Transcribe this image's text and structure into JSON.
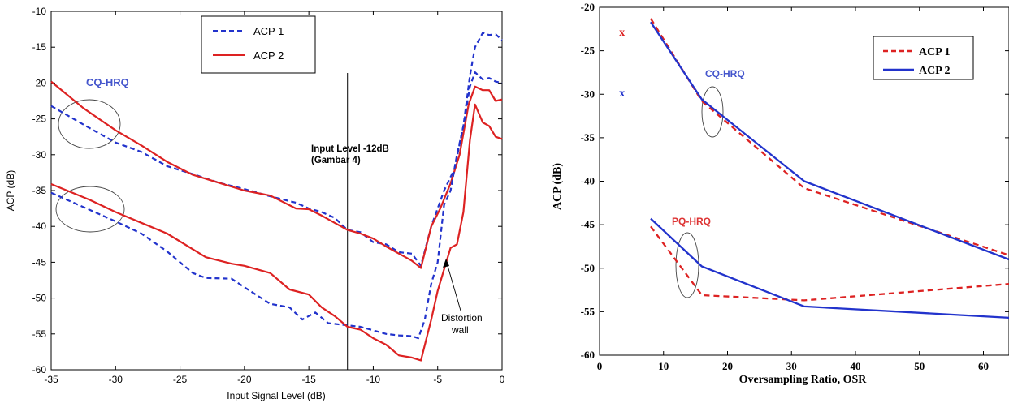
{
  "chart_data": [
    {
      "type": "line",
      "xlabel": "Input Signal Level (dB)",
      "ylabel": "ACP (dB)",
      "xlim": [
        -35,
        0
      ],
      "ylim": [
        -60,
        -10
      ],
      "x_ticks": [
        -35,
        -30,
        -25,
        -20,
        -15,
        -10,
        -5,
        0
      ],
      "y_ticks": [
        -60,
        -55,
        -50,
        -45,
        -40,
        -35,
        -30,
        -25,
        -20,
        -15,
        -10
      ],
      "grid": false,
      "legend_position": "top-center",
      "legend": [
        {
          "name": "ACP 1",
          "color": "#2233cc",
          "style": "dashed"
        },
        {
          "name": "ACP 2",
          "color": "#dd2222",
          "style": "solid"
        }
      ],
      "groups": [
        {
          "label": "CQ-HRQ",
          "label_color": "#4455cc",
          "series": [
            {
              "legend": "ACP 1",
              "color": "#2233cc",
              "style": "dashed",
              "points": [
                [
                  -35,
                  -23.2
                ],
                [
                  -32,
                  -26.3
                ],
                [
                  -30,
                  -28.3
                ],
                [
                  -28,
                  -29.6
                ],
                [
                  -26,
                  -31.6
                ],
                [
                  -24,
                  -32.7
                ],
                [
                  -22,
                  -33.9
                ],
                [
                  -20,
                  -34.8
                ],
                [
                  -18,
                  -35.8
                ],
                [
                  -16,
                  -36.7
                ],
                [
                  -15,
                  -37.5
                ],
                [
                  -14,
                  -38
                ],
                [
                  -13,
                  -38.8
                ],
                [
                  -12,
                  -40.5
                ],
                [
                  -11,
                  -40.8
                ],
                [
                  -10,
                  -42.2
                ],
                [
                  -9,
                  -42.5
                ],
                [
                  -8,
                  -43.6
                ],
                [
                  -7,
                  -43.8
                ],
                [
                  -6.3,
                  -45.5
                ],
                [
                  -5.5,
                  -40
                ],
                [
                  -4.5,
                  -35
                ],
                [
                  -3.7,
                  -32
                ],
                [
                  -3,
                  -26
                ],
                [
                  -2.5,
                  -19
                ],
                [
                  -2.1,
                  -15
                ],
                [
                  -1.5,
                  -13
                ],
                [
                  -1,
                  -13.3
                ],
                [
                  -0.5,
                  -13.2
                ],
                [
                  0,
                  -14
                ]
              ]
            },
            {
              "legend": "ACP 2",
              "color": "#dd2222",
              "style": "solid",
              "points": [
                [
                  -35,
                  -19.8
                ],
                [
                  -32.5,
                  -23.5
                ],
                [
                  -30,
                  -26.6
                ],
                [
                  -28,
                  -28.7
                ],
                [
                  -26,
                  -31
                ],
                [
                  -24,
                  -32.8
                ],
                [
                  -22,
                  -33.9
                ],
                [
                  -20,
                  -35
                ],
                [
                  -18,
                  -35.7
                ],
                [
                  -16,
                  -37.5
                ],
                [
                  -15,
                  -37.6
                ],
                [
                  -14,
                  -38.5
                ],
                [
                  -13,
                  -39.5
                ],
                [
                  -12,
                  -40.5
                ],
                [
                  -11,
                  -41
                ],
                [
                  -10,
                  -41.7
                ],
                [
                  -9,
                  -42.8
                ],
                [
                  -8,
                  -43.8
                ],
                [
                  -7,
                  -44.8
                ],
                [
                  -6.3,
                  -45.8
                ],
                [
                  -5.5,
                  -40
                ],
                [
                  -4.8,
                  -37.5
                ],
                [
                  -4,
                  -34
                ],
                [
                  -3.3,
                  -30
                ],
                [
                  -2.6,
                  -23
                ],
                [
                  -2.1,
                  -20.5
                ],
                [
                  -1.5,
                  -21
                ],
                [
                  -1,
                  -21
                ],
                [
                  -0.5,
                  -22.5
                ],
                [
                  0,
                  -22.3
                ]
              ]
            }
          ]
        },
        {
          "label": "",
          "label_color": "#4455cc",
          "series": [
            {
              "legend": "ACP 1",
              "color": "#2233cc",
              "style": "dashed",
              "points": [
                [
                  -35,
                  -35.3
                ],
                [
                  -32,
                  -37.7
                ],
                [
                  -30,
                  -39.3
                ],
                [
                  -28,
                  -41
                ],
                [
                  -26,
                  -43.5
                ],
                [
                  -24,
                  -46.5
                ],
                [
                  -23,
                  -47.2
                ],
                [
                  -21,
                  -47.3
                ],
                [
                  -20,
                  -48.5
                ],
                [
                  -18,
                  -50.8
                ],
                [
                  -16.5,
                  -51.3
                ],
                [
                  -15.5,
                  -53
                ],
                [
                  -14.5,
                  -52
                ],
                [
                  -13.5,
                  -53.5
                ],
                [
                  -12,
                  -53.8
                ],
                [
                  -11,
                  -54
                ],
                [
                  -10,
                  -54.5
                ],
                [
                  -9,
                  -55
                ],
                [
                  -8,
                  -55.2
                ],
                [
                  -7,
                  -55.3
                ],
                [
                  -6.5,
                  -55.6
                ],
                [
                  -6,
                  -53
                ],
                [
                  -5.5,
                  -48
                ],
                [
                  -5,
                  -45
                ],
                [
                  -4.5,
                  -37
                ],
                [
                  -4,
                  -35
                ],
                [
                  -3.5,
                  -30
                ],
                [
                  -3,
                  -26
                ],
                [
                  -2.5,
                  -20.5
                ],
                [
                  -2.1,
                  -18.5
                ],
                [
                  -1.5,
                  -19.5
                ],
                [
                  -1,
                  -19.3
                ],
                [
                  -0.5,
                  -19.8
                ],
                [
                  0,
                  -20
                ]
              ]
            },
            {
              "legend": "ACP 2",
              "color": "#dd2222",
              "style": "solid",
              "points": [
                [
                  -35,
                  -34.1
                ],
                [
                  -32,
                  -36.3
                ],
                [
                  -30,
                  -38
                ],
                [
                  -28,
                  -39.5
                ],
                [
                  -26,
                  -41
                ],
                [
                  -23,
                  -44.3
                ],
                [
                  -21,
                  -45.2
                ],
                [
                  -20,
                  -45.5
                ],
                [
                  -18,
                  -46.5
                ],
                [
                  -16.5,
                  -48.8
                ],
                [
                  -15,
                  -49.5
                ],
                [
                  -14,
                  -51.3
                ],
                [
                  -13,
                  -52.5
                ],
                [
                  -12,
                  -54
                ],
                [
                  -11,
                  -54.4
                ],
                [
                  -10,
                  -55.6
                ],
                [
                  -9,
                  -56.5
                ],
                [
                  -8,
                  -58
                ],
                [
                  -7,
                  -58.3
                ],
                [
                  -6.3,
                  -58.7
                ],
                [
                  -5.5,
                  -53
                ],
                [
                  -5,
                  -49
                ],
                [
                  -4.5,
                  -46
                ],
                [
                  -4,
                  -43
                ],
                [
                  -3.5,
                  -42.5
                ],
                [
                  -3,
                  -38
                ],
                [
                  -2.5,
                  -28
                ],
                [
                  -2.1,
                  -23
                ],
                [
                  -1.5,
                  -25.5
                ],
                [
                  -1,
                  -26
                ],
                [
                  -0.5,
                  -27.5
                ],
                [
                  0,
                  -27.8
                ]
              ]
            }
          ]
        }
      ],
      "annotations": [
        {
          "text": "Input Level -12dB",
          "text2": "(Gambar 4)",
          "x": -12,
          "y": -17.3
        },
        {
          "text": "Distortion",
          "text2": "wall",
          "x": -3.7,
          "y": -53.2
        }
      ],
      "vline": -12
    },
    {
      "type": "line",
      "xlabel": "Oversampling Ratio, OSR",
      "ylabel": "ACP (dB)",
      "xlim": [
        0,
        64
      ],
      "ylim": [
        -60,
        -20
      ],
      "x_ticks": [
        0,
        10,
        20,
        30,
        40,
        50,
        60
      ],
      "y_ticks": [
        -60,
        -55,
        -50,
        -45,
        -40,
        -35,
        -30,
        -25,
        -20
      ],
      "grid": false,
      "legend_position": "top-right",
      "legend": [
        {
          "name": "ACP 1",
          "color": "#dd2222",
          "style": "dashed"
        },
        {
          "name": "ACP 2",
          "color": "#2233cc",
          "style": "solid"
        }
      ],
      "groups": [
        {
          "label": "CQ-HRQ",
          "label_color": "#4455cc",
          "series": [
            {
              "legend": "ACP 1",
              "color": "#dd2222",
              "style": "dashed",
              "points": [
                [
                  8,
                  -21.3
                ],
                [
                  16,
                  -30.8
                ],
                [
                  32,
                  -40.8
                ],
                [
                  64,
                  -48.5
                ]
              ]
            },
            {
              "legend": "ACP 2",
              "color": "#2233cc",
              "style": "solid",
              "points": [
                [
                  8,
                  -21.7
                ],
                [
                  16,
                  -30.6
                ],
                [
                  32,
                  -40
                ],
                [
                  64,
                  -49
                ]
              ]
            }
          ]
        },
        {
          "label": "PQ-HRQ",
          "label_color": "#dd3333",
          "series": [
            {
              "legend": "ACP 1",
              "color": "#dd2222",
              "style": "dashed",
              "points": [
                [
                  8,
                  -45.2
                ],
                [
                  16,
                  -53.1
                ],
                [
                  32,
                  -53.7
                ],
                [
                  64,
                  -51.8
                ]
              ]
            },
            {
              "legend": "ACP 2",
              "color": "#2233cc",
              "style": "solid",
              "points": [
                [
                  8,
                  -44.3
                ],
                [
                  16,
                  -49.8
                ],
                [
                  32,
                  -54.4
                ],
                [
                  64,
                  -55.7
                ]
              ]
            }
          ]
        }
      ],
      "markers": [
        {
          "text": "x",
          "color": "#dd2222",
          "x": 3.5,
          "y": -22.8
        },
        {
          "text": "x",
          "color": "#2233cc",
          "x": 3.5,
          "y": -29.8
        }
      ]
    }
  ]
}
